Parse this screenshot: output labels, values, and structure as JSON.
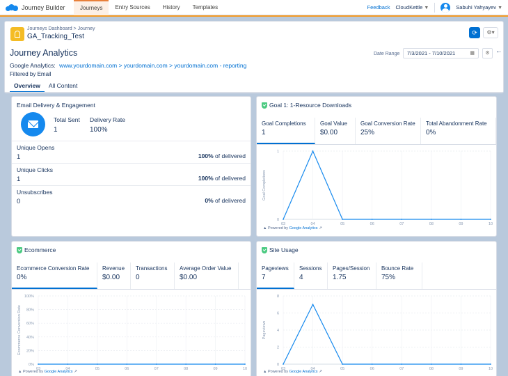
{
  "topbar": {
    "app_name": "Journey Builder",
    "tabs": [
      "Journeys",
      "Entry Sources",
      "History",
      "Templates"
    ],
    "feedback": "Feedback",
    "org": "CloudKettle",
    "user": "Sabuhi Yahyayev"
  },
  "record": {
    "breadcrumb": "Journeys Dashboard > Journey",
    "title": "GA_Tracking_Test"
  },
  "analytics": {
    "heading": "Journey Analytics",
    "ga_label": "Google Analytics:",
    "ga_path": "www.yourdomain.com > yourdomain.com > yourdomain.com - reporting",
    "filtered": "Filtered by Email",
    "tabs": [
      "Overview",
      "All Content"
    ],
    "date_range_label": "Date Range",
    "date_range_value": "7/3/2021 - 7/10/2021"
  },
  "email_panel": {
    "title": "Email Delivery & Engagement",
    "total_sent_label": "Total Sent",
    "total_sent": "1",
    "delivery_rate_label": "Delivery Rate",
    "delivery_rate": "100%",
    "rows": [
      {
        "label": "Unique Opens",
        "value": "1",
        "pct": "100%",
        "suffix": "of delivered"
      },
      {
        "label": "Unique Clicks",
        "value": "1",
        "pct": "100%",
        "suffix": "of delivered"
      },
      {
        "label": "Unsubscribes",
        "value": "0",
        "pct": "0%",
        "suffix": "of delivered"
      }
    ]
  },
  "goal_panel": {
    "title": "Goal 1: 1-Resource Downloads",
    "kpis": [
      {
        "label": "Goal Completions",
        "value": "1"
      },
      {
        "label": "Goal Value",
        "value": "$0.00"
      },
      {
        "label": "Goal Conversion Rate",
        "value": "25%"
      },
      {
        "label": "Total Abandonment Rate",
        "value": "0%"
      }
    ],
    "powered_prefix": "Powered by",
    "powered_link": "Google Analytics"
  },
  "ecommerce_panel": {
    "title": "Ecommerce",
    "kpis": [
      {
        "label": "Ecommerce Conversion Rate",
        "value": "0%"
      },
      {
        "label": "Revenue",
        "value": "$0.00"
      },
      {
        "label": "Transactions",
        "value": "0"
      },
      {
        "label": "Average Order Value",
        "value": "$0.00"
      }
    ],
    "powered_prefix": "Powered by",
    "powered_link": "Google Analytics"
  },
  "site_panel": {
    "title": "Site Usage",
    "kpis": [
      {
        "label": "Pageviews",
        "value": "7"
      },
      {
        "label": "Sessions",
        "value": "4"
      },
      {
        "label": "Pages/Session",
        "value": "1.75"
      },
      {
        "label": "Bounce Rate",
        "value": "75%"
      }
    ],
    "powered_prefix": "Powered by",
    "powered_link": "Google Analytics"
  },
  "chart_data": [
    {
      "type": "line",
      "ylabel": "Goal Completions",
      "categories": [
        "03",
        "04",
        "05",
        "06",
        "07",
        "08",
        "09",
        "10"
      ],
      "series": [
        {
          "values": [
            0,
            1,
            0,
            0,
            0,
            0,
            0,
            0
          ]
        }
      ],
      "yticks": [
        "0",
        "1"
      ],
      "ylim": [
        0,
        1
      ],
      "color": "#1589ee"
    },
    {
      "type": "line",
      "ylabel": "Ecommerce Conversion Rate",
      "categories": [
        "03",
        "04",
        "05",
        "06",
        "07",
        "08",
        "09",
        "10"
      ],
      "series": [
        {
          "values": [
            0,
            0,
            0,
            0,
            0,
            0,
            0,
            0
          ]
        }
      ],
      "yticks": [
        "0%",
        "20%",
        "40%",
        "60%",
        "80%",
        "100%"
      ],
      "ylim": [
        0,
        100
      ],
      "color": "#1589ee"
    },
    {
      "type": "line",
      "ylabel": "Pageviews",
      "categories": [
        "03",
        "04",
        "05",
        "06",
        "07",
        "08",
        "09",
        "10"
      ],
      "series": [
        {
          "values": [
            0,
            7,
            0,
            0,
            0,
            0,
            0,
            0
          ]
        }
      ],
      "yticks": [
        "0",
        "2",
        "4",
        "6",
        "8"
      ],
      "ylim": [
        0,
        8
      ],
      "color": "#1589ee"
    }
  ]
}
